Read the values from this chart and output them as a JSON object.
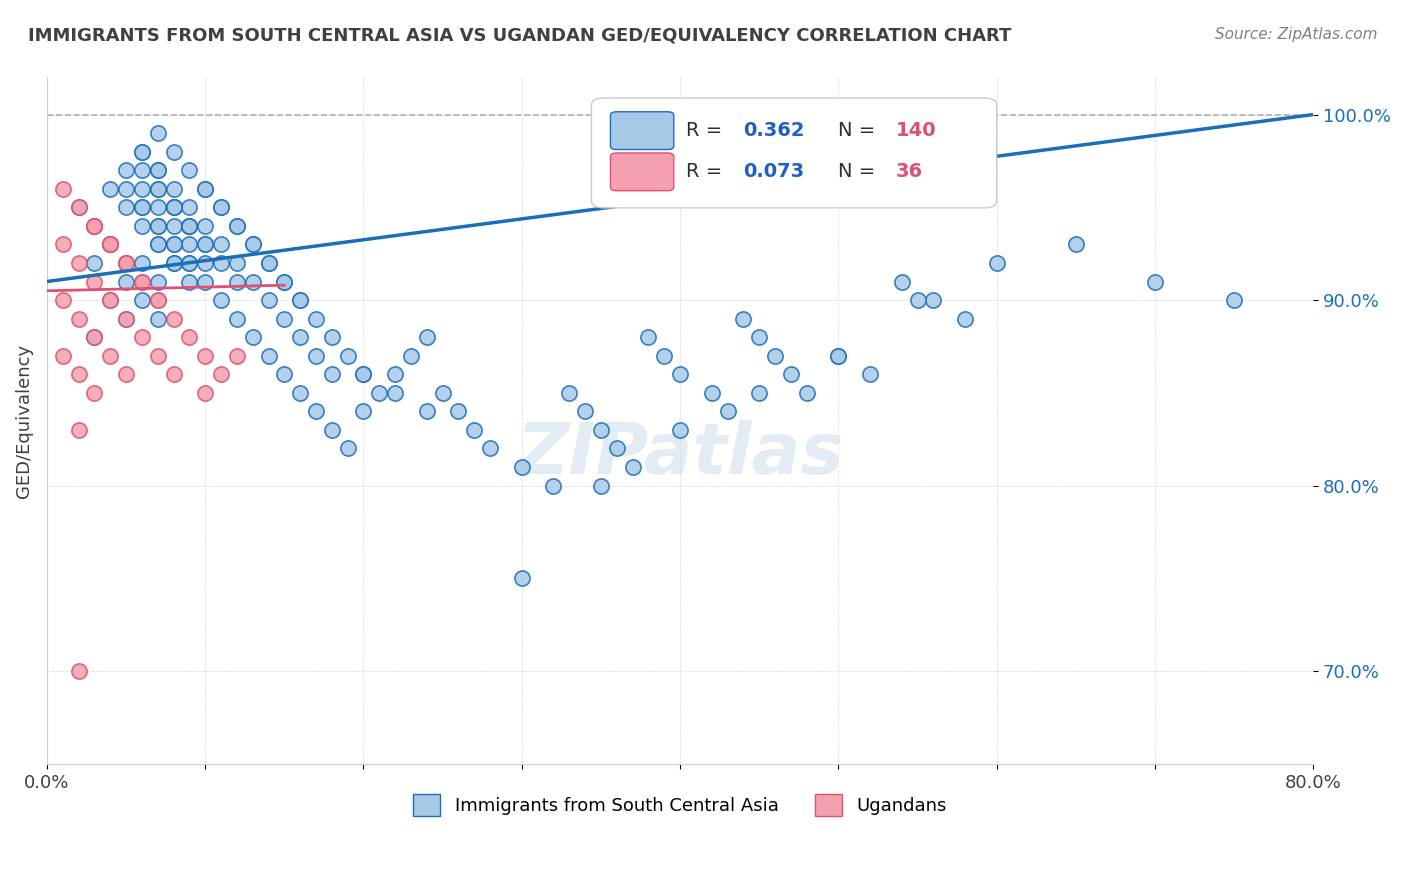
{
  "title": "IMMIGRANTS FROM SOUTH CENTRAL ASIA VS UGANDAN GED/EQUIVALENCY CORRELATION CHART",
  "source_text": "Source: ZipAtlas.com",
  "xlabel": "",
  "ylabel": "GED/Equivalency",
  "xlim": [
    0.0,
    0.8
  ],
  "ylim": [
    0.65,
    1.02
  ],
  "x_ticks": [
    0.0,
    0.1,
    0.2,
    0.3,
    0.4,
    0.5,
    0.6,
    0.7,
    0.8
  ],
  "x_tick_labels": [
    "0.0%",
    "",
    "",
    "",
    "",
    "",
    "",
    "",
    "80.0%"
  ],
  "y_tick_positions": [
    0.7,
    0.8,
    0.9,
    1.0
  ],
  "y_tick_labels": [
    "70.0%",
    "80.0%",
    "90.0%",
    "100.0%"
  ],
  "blue_R": 0.362,
  "blue_N": 140,
  "pink_R": 0.073,
  "pink_N": 36,
  "blue_color": "#a8c8e8",
  "blue_line_color": "#1a6fba",
  "pink_color": "#f4a0b0",
  "pink_line_color": "#e05070",
  "dashed_line_color": "#b0b0b0",
  "watermark_color": "#c8d8e8",
  "legend_R_color": "#2060c0",
  "legend_N_color": "#e05070",
  "title_color": "#404040",
  "blue_scatter_x": [
    0.02,
    0.03,
    0.03,
    0.04,
    0.04,
    0.04,
    0.05,
    0.05,
    0.05,
    0.05,
    0.06,
    0.06,
    0.06,
    0.06,
    0.06,
    0.07,
    0.07,
    0.07,
    0.07,
    0.07,
    0.07,
    0.08,
    0.08,
    0.08,
    0.08,
    0.09,
    0.09,
    0.09,
    0.1,
    0.1,
    0.1,
    0.11,
    0.11,
    0.12,
    0.12,
    0.13,
    0.13,
    0.14,
    0.14,
    0.15,
    0.15,
    0.16,
    0.16,
    0.17,
    0.17,
    0.18,
    0.18,
    0.19,
    0.2,
    0.2,
    0.21,
    0.22,
    0.23,
    0.24,
    0.25,
    0.26,
    0.27,
    0.28,
    0.3,
    0.32,
    0.33,
    0.34,
    0.35,
    0.36,
    0.37,
    0.38,
    0.39,
    0.4,
    0.42,
    0.43,
    0.44,
    0.45,
    0.46,
    0.47,
    0.48,
    0.5,
    0.52,
    0.54,
    0.56,
    0.58,
    0.03,
    0.04,
    0.05,
    0.06,
    0.07,
    0.08,
    0.09,
    0.1,
    0.11,
    0.12,
    0.05,
    0.06,
    0.07,
    0.08,
    0.09,
    0.07,
    0.08,
    0.09,
    0.1,
    0.06,
    0.07,
    0.08,
    0.09,
    0.06,
    0.07,
    0.08,
    0.09,
    0.1,
    0.11,
    0.12,
    0.13,
    0.14,
    0.15,
    0.16,
    0.17,
    0.18,
    0.19,
    0.2,
    0.22,
    0.24,
    0.3,
    0.35,
    0.4,
    0.45,
    0.5,
    0.55,
    0.6,
    0.65,
    0.7,
    0.75,
    0.07,
    0.08,
    0.09,
    0.1,
    0.11,
    0.12,
    0.13,
    0.14,
    0.15,
    0.16
  ],
  "blue_scatter_y": [
    0.95,
    0.92,
    0.88,
    0.96,
    0.93,
    0.9,
    0.97,
    0.95,
    0.92,
    0.89,
    0.98,
    0.96,
    0.94,
    0.92,
    0.9,
    0.99,
    0.97,
    0.95,
    0.93,
    0.91,
    0.89,
    0.98,
    0.96,
    0.94,
    0.92,
    0.97,
    0.95,
    0.93,
    0.96,
    0.94,
    0.92,
    0.95,
    0.93,
    0.94,
    0.92,
    0.93,
    0.91,
    0.92,
    0.9,
    0.91,
    0.89,
    0.9,
    0.88,
    0.89,
    0.87,
    0.88,
    0.86,
    0.87,
    0.86,
    0.84,
    0.85,
    0.86,
    0.87,
    0.88,
    0.85,
    0.84,
    0.83,
    0.82,
    0.81,
    0.8,
    0.85,
    0.84,
    0.83,
    0.82,
    0.81,
    0.88,
    0.87,
    0.86,
    0.85,
    0.84,
    0.89,
    0.88,
    0.87,
    0.86,
    0.85,
    0.87,
    0.86,
    0.91,
    0.9,
    0.89,
    0.94,
    0.93,
    0.91,
    0.98,
    0.97,
    0.95,
    0.94,
    0.93,
    0.92,
    0.91,
    0.96,
    0.95,
    0.94,
    0.93,
    0.92,
    0.96,
    0.95,
    0.94,
    0.93,
    0.97,
    0.96,
    0.95,
    0.94,
    0.95,
    0.94,
    0.93,
    0.92,
    0.91,
    0.9,
    0.89,
    0.88,
    0.87,
    0.86,
    0.85,
    0.84,
    0.83,
    0.82,
    0.86,
    0.85,
    0.84,
    0.75,
    0.8,
    0.83,
    0.85,
    0.87,
    0.9,
    0.92,
    0.93,
    0.91,
    0.9,
    0.93,
    0.92,
    0.91,
    0.96,
    0.95,
    0.94,
    0.93,
    0.92,
    0.91,
    0.9
  ],
  "pink_scatter_x": [
    0.01,
    0.01,
    0.01,
    0.01,
    0.02,
    0.02,
    0.02,
    0.02,
    0.02,
    0.03,
    0.03,
    0.03,
    0.03,
    0.04,
    0.04,
    0.04,
    0.05,
    0.05,
    0.05,
    0.06,
    0.06,
    0.07,
    0.07,
    0.08,
    0.08,
    0.09,
    0.1,
    0.1,
    0.11,
    0.12,
    0.02,
    0.03,
    0.04,
    0.05,
    0.06,
    0.07
  ],
  "pink_scatter_y": [
    0.96,
    0.93,
    0.9,
    0.87,
    0.95,
    0.92,
    0.89,
    0.86,
    0.83,
    0.94,
    0.91,
    0.88,
    0.85,
    0.93,
    0.9,
    0.87,
    0.92,
    0.89,
    0.86,
    0.91,
    0.88,
    0.9,
    0.87,
    0.89,
    0.86,
    0.88,
    0.87,
    0.85,
    0.86,
    0.87,
    0.7,
    0.94,
    0.93,
    0.92,
    0.91,
    0.9
  ]
}
